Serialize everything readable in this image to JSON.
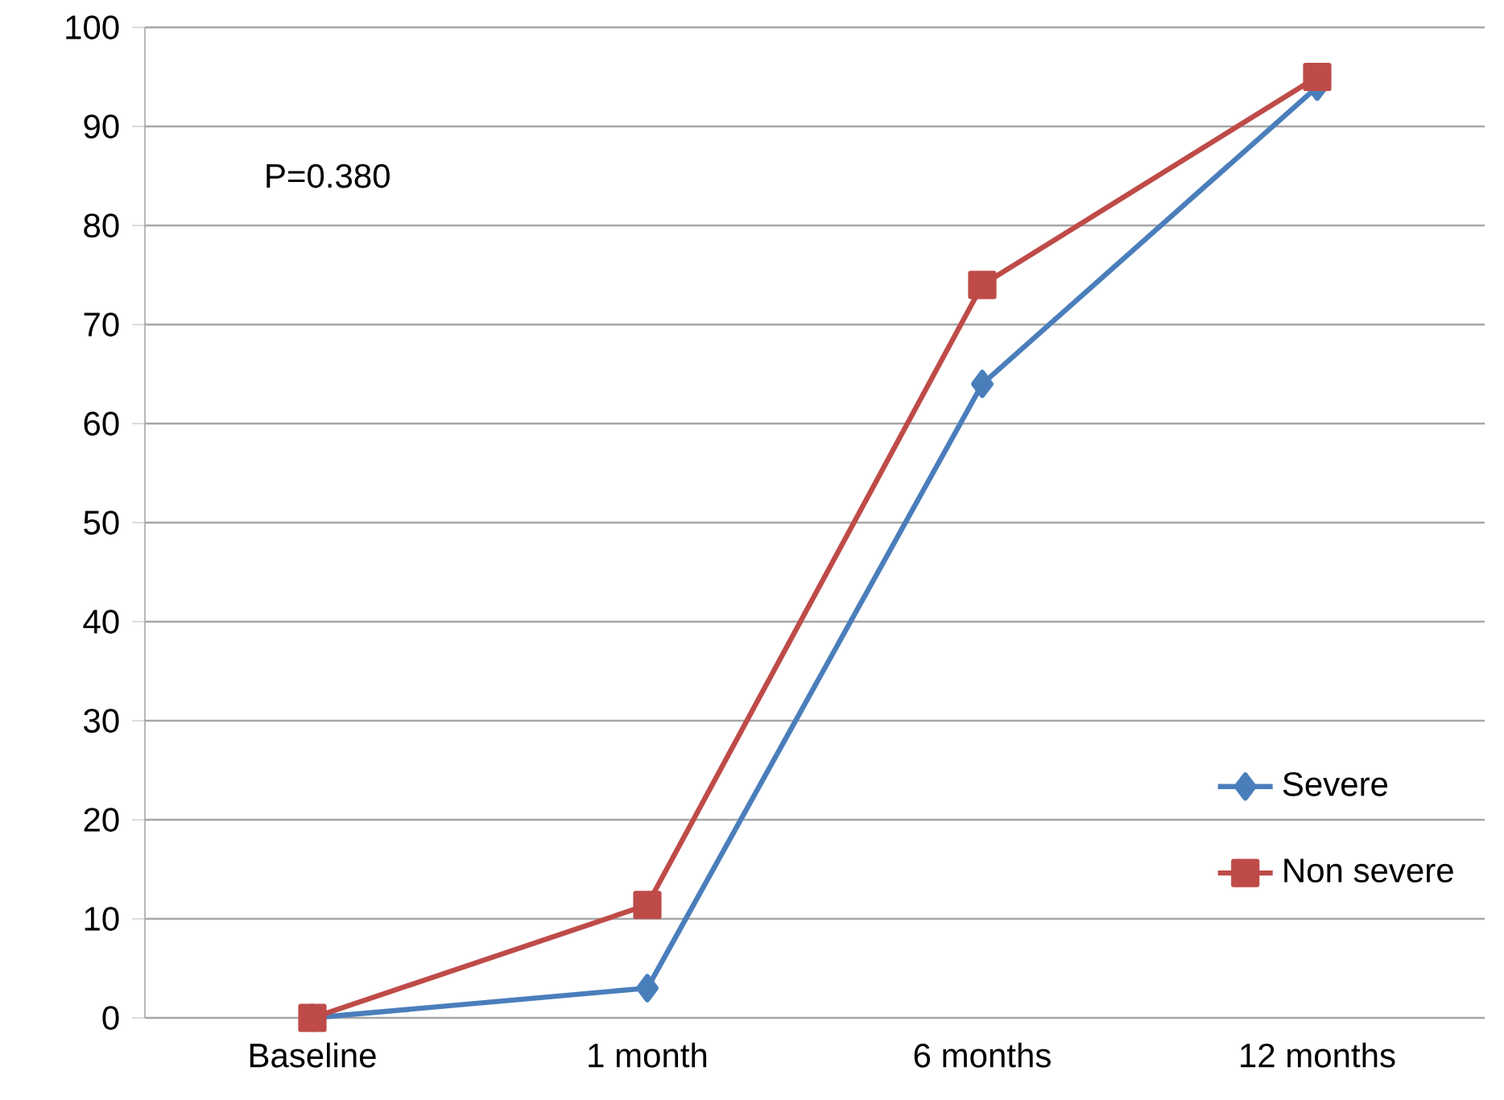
{
  "chart_data": {
    "type": "line",
    "categories": [
      "Baseline",
      "1 month",
      "6 months",
      "12 months"
    ],
    "series": [
      {
        "name": "Severe",
        "color": "#4a7ebb",
        "marker": "diamond",
        "values": [
          0,
          3,
          64,
          94
        ]
      },
      {
        "name": "Non severe",
        "color": "#be4b48",
        "marker": "square",
        "values": [
          0,
          11.4,
          74,
          95
        ]
      }
    ],
    "ylim": [
      0,
      100
    ],
    "yticks": [
      0,
      10,
      20,
      30,
      40,
      50,
      60,
      70,
      80,
      90,
      100
    ],
    "grid": "y",
    "legend": "right",
    "line_style": "solid",
    "annotations": [
      "P=0.380"
    ]
  }
}
